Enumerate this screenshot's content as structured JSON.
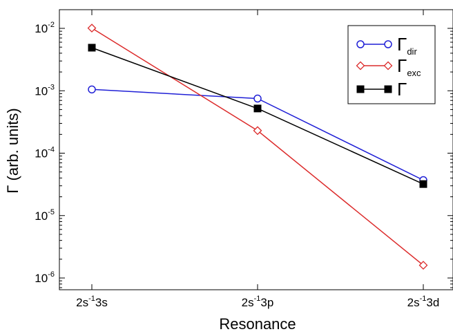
{
  "chart_data": {
    "type": "line",
    "xlabel": "Resonance",
    "ylabel": "Γ (arb. units)",
    "yscale": "log",
    "ylim": [
      1e-06,
      0.01
    ],
    "grid": false,
    "legend_position": "top-right",
    "categories": [
      {
        "base": "2s",
        "exp": "-1",
        "suffix": "3s"
      },
      {
        "base": "2s",
        "exp": "-1",
        "suffix": "3p"
      },
      {
        "base": "2s",
        "exp": "-1",
        "suffix": "3d"
      }
    ],
    "y_ticks": [
      {
        "base": "10",
        "exp": "-2",
        "value": 0.01
      },
      {
        "base": "10",
        "exp": "-3",
        "value": 0.001
      },
      {
        "base": "10",
        "exp": "-4",
        "value": 0.0001
      },
      {
        "base": "10",
        "exp": "-5",
        "value": 1e-05
      },
      {
        "base": "10",
        "exp": "-6",
        "value": 1e-06
      }
    ],
    "series": [
      {
        "symbol": "Γ",
        "sub": "dir",
        "color": "#1f1fd6",
        "marker": "open-circle",
        "values": [
          0.00105,
          0.00075,
          3.7e-05
        ]
      },
      {
        "symbol": "Γ",
        "sub": "exc",
        "color": "#dc2b2b",
        "marker": "open-diamond",
        "values": [
          0.0101,
          0.00023,
          1.6e-06
        ]
      },
      {
        "symbol": "Γ",
        "sub": "",
        "color": "#000000",
        "marker": "filled-square",
        "values": [
          0.0049,
          0.00052,
          3.2e-05
        ]
      }
    ]
  }
}
